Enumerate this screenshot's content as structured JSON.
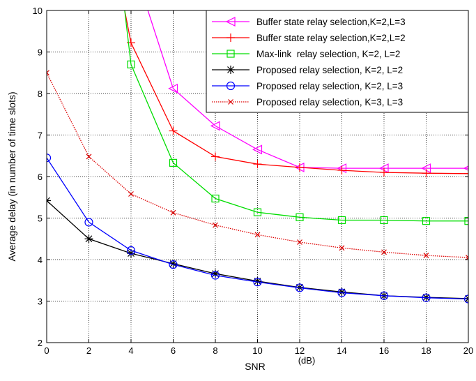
{
  "chart_data": {
    "type": "line",
    "xlabel": "SNR",
    "xlabel_unit": "(dB)",
    "ylabel": "Average delay (in number of time slots)",
    "xlim": [
      0,
      20
    ],
    "ylim": [
      2,
      10
    ],
    "x_ticks": [
      0,
      2,
      4,
      6,
      8,
      10,
      12,
      14,
      16,
      18,
      20
    ],
    "y_ticks": [
      2,
      3,
      4,
      5,
      6,
      7,
      8,
      9,
      10
    ],
    "grid": "on",
    "grid_style": "dotted",
    "legend_position": "top-right",
    "x": [
      0,
      2,
      4,
      6,
      8,
      10,
      12,
      14,
      16,
      18,
      20
    ],
    "series": [
      {
        "name": "Buffer state relay selection,K=2,L=3",
        "color": "#ff00ff",
        "marker": "triangle-left",
        "line_style": "solid",
        "x": [
          4.8,
          6,
          8,
          10,
          12,
          14,
          16,
          18,
          20
        ],
        "values": [
          10,
          8.12,
          7.22,
          6.65,
          6.22,
          6.2,
          6.2,
          6.2,
          6.2
        ]
      },
      {
        "name": "Buffer state relay selection,K=2,L=2",
        "color": "#ff0000",
        "marker": "plus",
        "line_style": "solid",
        "x": [
          3.7,
          4,
          6,
          8,
          10,
          12,
          14,
          16,
          18,
          20
        ],
        "values": [
          10,
          9.22,
          7.1,
          6.48,
          6.3,
          6.22,
          6.15,
          6.1,
          6.08,
          6.07
        ]
      },
      {
        "name": "Max-link  relay selection, K=2, L=2",
        "color": "#00dd00",
        "marker": "square",
        "line_style": "solid",
        "x": [
          3.7,
          4,
          6,
          8,
          10,
          12,
          14,
          16,
          18,
          20
        ],
        "values": [
          10,
          8.7,
          6.33,
          5.47,
          5.14,
          5.02,
          4.95,
          4.95,
          4.93,
          4.93
        ]
      },
      {
        "name": "Proposed relay selection, K=2, L=2",
        "color": "#000000",
        "marker": "star",
        "line_style": "solid",
        "x": [
          0,
          2,
          4,
          6,
          8,
          10,
          12,
          14,
          16,
          18,
          20
        ],
        "values": [
          5.42,
          4.5,
          4.15,
          3.9,
          3.66,
          3.48,
          3.33,
          3.22,
          3.13,
          3.09,
          3.06
        ]
      },
      {
        "name": "Proposed relay selection, K=2, L=3",
        "color": "#0000ff",
        "marker": "circle",
        "line_style": "solid",
        "x": [
          0,
          2,
          4,
          6,
          8,
          10,
          12,
          14,
          16,
          18,
          20
        ],
        "values": [
          6.45,
          4.9,
          4.22,
          3.88,
          3.62,
          3.46,
          3.32,
          3.2,
          3.13,
          3.08,
          3.05
        ]
      },
      {
        "name": "Proposed relay selection, K=3, L=3",
        "color": "#dd0000",
        "marker": "x",
        "line_style": "dotted",
        "x": [
          0,
          2,
          4,
          6,
          8,
          10,
          12,
          14,
          16,
          18,
          20
        ],
        "values": [
          8.5,
          6.48,
          5.58,
          5.13,
          4.83,
          4.6,
          4.42,
          4.28,
          4.18,
          4.1,
          4.05
        ]
      }
    ]
  }
}
